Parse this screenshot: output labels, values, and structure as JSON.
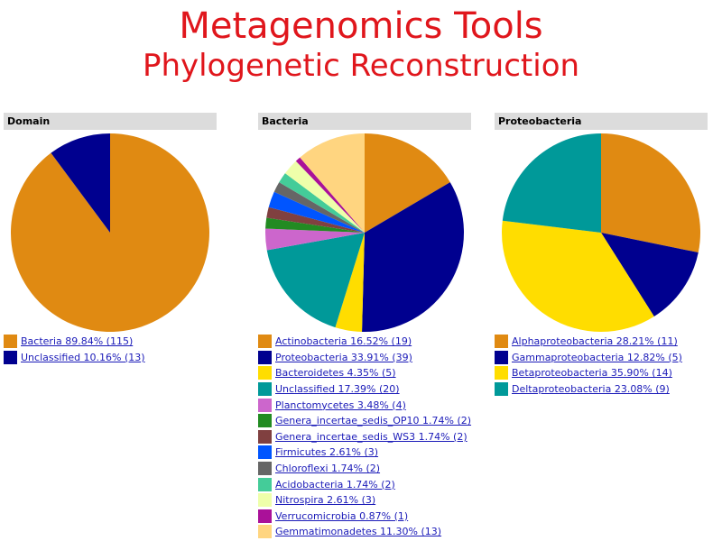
{
  "header": {
    "title": "Metagenomics Tools",
    "subtitle": "Phylogenetic Reconstruction"
  },
  "chart_data": [
    {
      "type": "pie",
      "title": "Domain",
      "slices": [
        {
          "label": "Bacteria 89.84% (115)",
          "name": "Bacteria",
          "percent": 89.84,
          "count": 115,
          "color": "#e08a12"
        },
        {
          "label": "Unclassified 10.16% (13)",
          "name": "Unclassified",
          "percent": 10.16,
          "count": 13,
          "color": "#00008f"
        }
      ]
    },
    {
      "type": "pie",
      "title": "Bacteria",
      "slices": [
        {
          "label": "Actinobacteria 16.52% (19)",
          "name": "Actinobacteria",
          "percent": 16.52,
          "count": 19,
          "color": "#e08a12"
        },
        {
          "label": "Proteobacteria 33.91% (39)",
          "name": "Proteobacteria",
          "percent": 33.91,
          "count": 39,
          "color": "#00008f"
        },
        {
          "label": "Bacteroidetes 4.35% (5)",
          "name": "Bacteroidetes",
          "percent": 4.35,
          "count": 5,
          "color": "#ffdd00"
        },
        {
          "label": "Unclassified 17.39% (20)",
          "name": "Unclassified",
          "percent": 17.39,
          "count": 20,
          "color": "#009999"
        },
        {
          "label": "Planctomycetes 3.48% (4)",
          "name": "Planctomycetes",
          "percent": 3.48,
          "count": 4,
          "color": "#cc66cc"
        },
        {
          "label": "Genera_incertae_sedis_OP10 1.74% (2)",
          "name": "Genera_incertae_sedis_OP10",
          "percent": 1.74,
          "count": 2,
          "color": "#228b22"
        },
        {
          "label": "Genera_incertae_sedis_WS3 1.74% (2)",
          "name": "Genera_incertae_sedis_WS3",
          "percent": 1.74,
          "count": 2,
          "color": "#804040"
        },
        {
          "label": "Firmicutes 2.61% (3)",
          "name": "Firmicutes",
          "percent": 2.61,
          "count": 3,
          "color": "#0055ff"
        },
        {
          "label": "Chloroflexi 1.74% (2)",
          "name": "Chloroflexi",
          "percent": 1.74,
          "count": 2,
          "color": "#666666"
        },
        {
          "label": "Acidobacteria 1.74% (2)",
          "name": "Acidobacteria",
          "percent": 1.74,
          "count": 2,
          "color": "#44cc99"
        },
        {
          "label": "Nitrospira 2.61% (3)",
          "name": "Nitrospira",
          "percent": 2.61,
          "count": 3,
          "color": "#eeffaa"
        },
        {
          "label": "Verrucomicrobia 0.87% (1)",
          "name": "Verrucomicrobia",
          "percent": 0.87,
          "count": 1,
          "color": "#aa1199"
        },
        {
          "label": "Gemmatimonadetes 11.30% (13)",
          "name": "Gemmatimonadetes",
          "percent": 11.3,
          "count": 13,
          "color": "#ffd580"
        }
      ]
    },
    {
      "type": "pie",
      "title": "Proteobacteria",
      "slices": [
        {
          "label": "Alphaproteobacteria 28.21% (11)",
          "name": "Alphaproteobacteria",
          "percent": 28.21,
          "count": 11,
          "color": "#e08a12"
        },
        {
          "label": "Gammaproteobacteria 12.82% (5)",
          "name": "Gammaproteobacteria",
          "percent": 12.82,
          "count": 5,
          "color": "#00008f"
        },
        {
          "label": "Betaproteobacteria 35.90% (14)",
          "name": "Betaproteobacteria",
          "percent": 35.9,
          "count": 14,
          "color": "#ffdd00"
        },
        {
          "label": "Deltaproteobacteria 23.08% (9)",
          "name": "Deltaproteobacteria",
          "percent": 23.08,
          "count": 9,
          "color": "#009999"
        }
      ]
    }
  ]
}
